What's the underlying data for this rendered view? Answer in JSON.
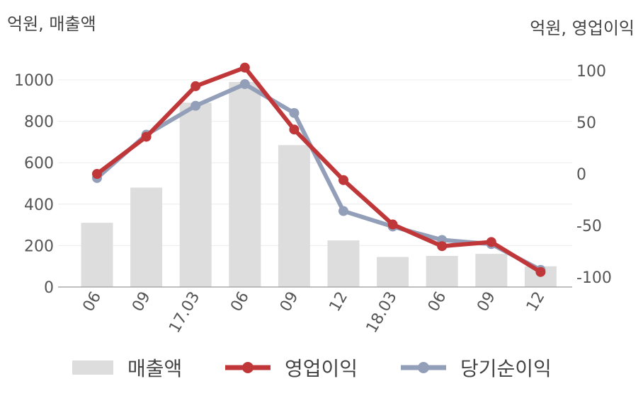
{
  "chart_data": {
    "type": "bar+line",
    "categories": [
      "06",
      "09",
      "17.03",
      "06",
      "09",
      "12",
      "18.03",
      "06",
      "09",
      "12"
    ],
    "left_unit": "억원, 매출액",
    "right_unit": "억원, 영업이익",
    "left_axis": {
      "ylim": [
        0,
        1100
      ],
      "ticks": [
        "0",
        "200",
        "400",
        "600",
        "800",
        "1000"
      ]
    },
    "right_axis": {
      "ylim": [
        -110,
        110
      ],
      "ticks": [
        "-100",
        "-50",
        "0",
        "50",
        "100"
      ]
    },
    "series": [
      {
        "name": "매출액",
        "type": "bar",
        "axis": "left",
        "color": "#dddddd",
        "values": [
          310,
          480,
          890,
          990,
          685,
          225,
          145,
          150,
          160,
          100
        ]
      },
      {
        "name": "영업이익",
        "type": "line",
        "axis": "right",
        "color": "#c0373a",
        "values": [
          0,
          36,
          85,
          103,
          43,
          -6,
          -49,
          -70,
          -66,
          -95
        ]
      },
      {
        "name": "당기순이익",
        "type": "line",
        "axis": "right",
        "color": "#939fb9",
        "values": [
          -4,
          38,
          66,
          87,
          59,
          -36,
          -51,
          -64,
          -68,
          -93
        ]
      }
    ],
    "grid": true,
    "legend_position": "bottom"
  }
}
